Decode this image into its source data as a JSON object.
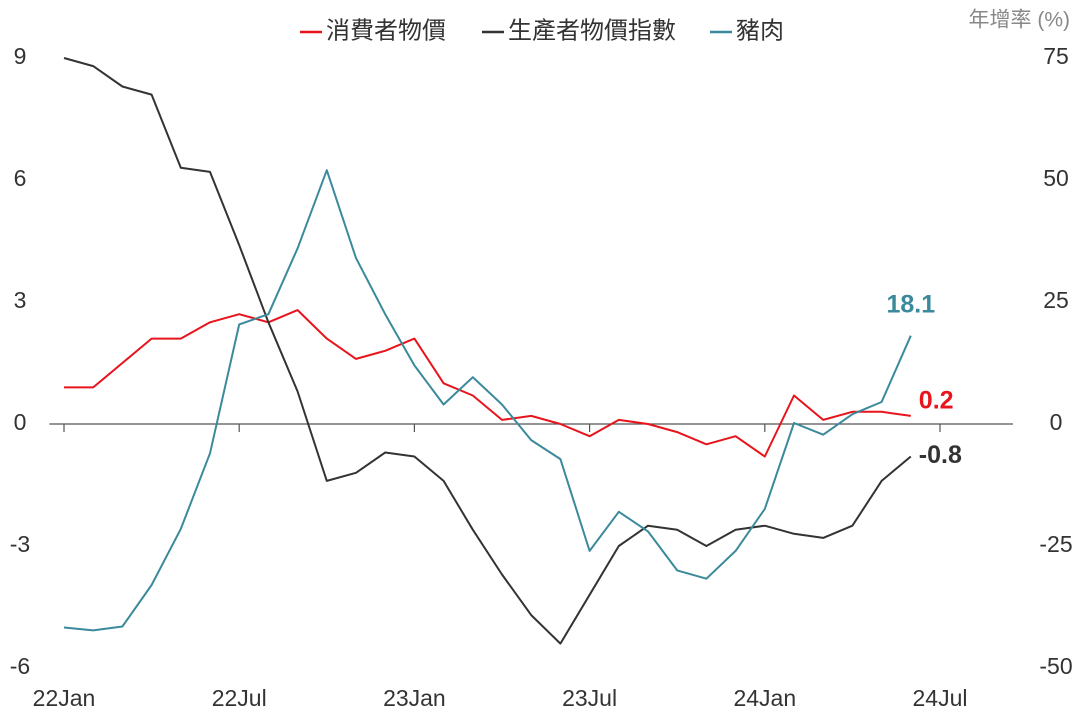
{
  "chart_data": {
    "type": "line",
    "y2label": "年增率 (%)",
    "x": [
      0,
      1,
      2,
      3,
      4,
      5,
      6,
      7,
      8,
      9,
      10,
      11,
      12,
      13,
      14,
      15,
      16,
      17,
      18,
      19,
      20,
      21,
      22,
      23,
      24,
      25,
      26,
      27,
      28,
      29
    ],
    "xlim": [
      -0.5,
      32.5
    ],
    "xticks": [
      {
        "value": 0,
        "label": "22Jan"
      },
      {
        "value": 6,
        "label": "22Jul"
      },
      {
        "value": 12,
        "label": "23Jan"
      },
      {
        "value": 18,
        "label": "23Jul"
      },
      {
        "value": 24,
        "label": "24Jan"
      },
      {
        "value": 30,
        "label": "24Jul"
      }
    ],
    "ylim": [
      -6,
      9
    ],
    "yticks": [
      -6,
      -3,
      0,
      3,
      6,
      9
    ],
    "y2lim": [
      -50,
      75
    ],
    "y2ticks": [
      -50,
      -25,
      0,
      25,
      50,
      75
    ],
    "series": [
      {
        "name": "消費者物價",
        "color": "#e8141c",
        "label_last": true,
        "values": [
          0.9,
          0.9,
          1.5,
          2.1,
          2.1,
          2.5,
          2.7,
          2.5,
          2.8,
          2.1,
          1.6,
          1.8,
          2.1,
          1.0,
          0.7,
          0.1,
          0.2,
          0,
          -0.3,
          0.1,
          0,
          -0.2,
          -0.5,
          -0.3,
          -0.8,
          0.7,
          0.1,
          0.3,
          0.3,
          0.2
        ]
      },
      {
        "name": "生產者物價指數",
        "color": "#333333",
        "label_last": true,
        "values": [
          9.0,
          8.8,
          8.3,
          8.1,
          6.3,
          6.2,
          4.4,
          2.5,
          0.8,
          -1.4,
          -1.2,
          -0.7,
          -0.8,
          -1.4,
          -2.6,
          -3.7,
          -4.7,
          -5.4,
          -4.2,
          -3.0,
          -2.5,
          -2.6,
          -3.0,
          -2.6,
          -2.5,
          -2.7,
          -2.8,
          -2.5,
          -1.4,
          -0.8
        ]
      },
      {
        "name": "豬肉",
        "color": "#3a8a9c",
        "axis": "y2",
        "label_last": true,
        "values": [
          -41.7,
          -42.3,
          -41.5,
          -33,
          -21.5,
          -6,
          20.4,
          22.5,
          36,
          52,
          34,
          22.5,
          12,
          4,
          9.6,
          4,
          -3.3,
          -7.2,
          -26,
          -18,
          -22,
          -30,
          -31.7,
          -26,
          -17.4,
          0.2,
          -2.2,
          2,
          4.5,
          18.1
        ]
      }
    ]
  }
}
